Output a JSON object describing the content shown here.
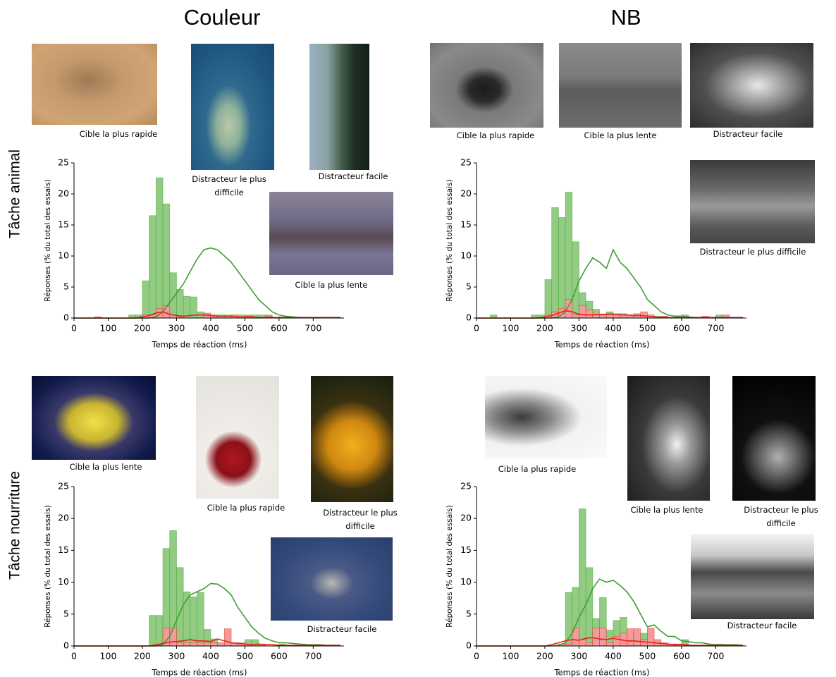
{
  "columns": [
    "Couleur",
    "NB"
  ],
  "rows": [
    "Tâche animal",
    "Tâche nourriture"
  ],
  "chart_data": [
    {
      "type": "histogram",
      "xlabel": "Temps de réaction  (ms)",
      "ylabel": "Réponses (% du total des essais)",
      "xlim": [
        0,
        790
      ],
      "ylim": [
        0,
        25
      ],
      "xticks": [
        0,
        100,
        200,
        300,
        400,
        500,
        600,
        700
      ],
      "yticks": [
        0,
        5,
        10,
        15,
        20,
        25
      ],
      "bins": [
        0,
        20,
        40,
        60,
        80,
        100,
        120,
        140,
        160,
        180,
        200,
        220,
        240,
        260,
        280,
        300,
        320,
        340,
        360,
        380,
        400,
        420,
        440,
        460,
        480,
        500,
        520,
        540,
        560,
        580,
        600,
        620,
        640,
        660,
        680,
        700,
        720,
        740,
        760,
        780
      ],
      "series": [
        {
          "color": "#92cc82",
          "values": [
            0,
            0,
            0,
            0,
            0,
            0,
            0,
            0,
            0.5,
            0.5,
            6,
            16.5,
            22.6,
            18.4,
            7.3,
            4.6,
            3.5,
            3.4,
            1,
            0.5,
            0.5,
            0.5,
            0.5,
            0.5,
            0.5,
            0.5,
            0.5,
            0.5,
            0.5,
            0,
            0.2,
            0,
            0,
            0,
            0,
            0,
            0,
            0,
            0
          ]
        },
        {
          "color": "#f39a9a",
          "values": [
            0,
            0,
            0,
            0.2,
            0,
            0,
            0,
            0,
            0,
            0,
            0.5,
            0.5,
            1.5,
            2,
            0.5,
            0.2,
            0,
            0,
            0,
            0.8,
            0.5,
            0,
            0,
            0.5,
            0,
            0.3,
            0,
            0,
            0.3,
            0,
            0,
            0.2,
            0,
            0,
            0,
            0,
            0,
            0,
            0
          ]
        }
      ],
      "x": [
        0,
        20,
        40,
        60,
        80,
        100,
        120,
        140,
        160,
        180,
        200,
        220,
        240,
        260,
        280,
        300,
        320,
        340,
        360,
        380,
        400,
        420,
        440,
        460,
        480,
        500,
        520,
        540,
        560,
        580,
        600,
        620,
        640,
        660,
        680,
        700,
        720,
        740,
        760,
        780
      ],
      "line_series": [
        {
          "color": "#3f9e33",
          "values": [
            0,
            0,
            0,
            0,
            0,
            0,
            0,
            0,
            0,
            0,
            0,
            0,
            0.2,
            1,
            2.5,
            4,
            5.5,
            7.5,
            9.5,
            11,
            11.3,
            11,
            10,
            9,
            7.5,
            6,
            4.5,
            3,
            2,
            1,
            0.5,
            0.3,
            0.2,
            0.1,
            0.1,
            0.1,
            0.1,
            0.1,
            0.1,
            0.1
          ]
        },
        {
          "color": "#e5221c",
          "values": [
            0,
            0,
            0,
            0,
            0,
            0,
            0,
            0,
            0,
            0,
            0.2,
            0.4,
            0.8,
            1,
            0.6,
            0.4,
            0.3,
            0.4,
            0.5,
            0.5,
            0.4,
            0.3,
            0.3,
            0.3,
            0.2,
            0.2,
            0.2,
            0.1,
            0.1,
            0.1,
            0.1,
            0.1,
            0.1,
            0.1,
            0.1,
            0.1,
            0.1,
            0.1,
            0.1,
            0.1
          ]
        }
      ],
      "annotations": [
        "Cible la plus rapide",
        "Distracteur le plus difficile",
        "Distracteur facile",
        "Cible la plus lente"
      ]
    },
    {
      "type": "histogram",
      "xlabel": "Temps de réaction  (ms)",
      "ylabel": "Réponses (% du total des essais)",
      "xlim": [
        0,
        790
      ],
      "ylim": [
        0,
        25
      ],
      "xticks": [
        0,
        100,
        200,
        300,
        400,
        500,
        600,
        700
      ],
      "yticks": [
        0,
        5,
        10,
        15,
        20,
        25
      ],
      "bins": [
        0,
        20,
        40,
        60,
        80,
        100,
        120,
        140,
        160,
        180,
        200,
        220,
        240,
        260,
        280,
        300,
        320,
        340,
        360,
        380,
        400,
        420,
        440,
        460,
        480,
        500,
        520,
        540,
        560,
        580,
        600,
        620,
        640,
        660,
        680,
        700,
        720,
        740,
        760,
        780
      ],
      "series": [
        {
          "color": "#92cc82",
          "values": [
            0,
            0,
            0.5,
            0,
            0,
            0,
            0,
            0,
            0.5,
            0.5,
            6.2,
            17.8,
            16.2,
            20.3,
            12.3,
            4.1,
            2.7,
            1.4,
            0.5,
            1,
            0.5,
            0.7,
            0.5,
            0.5,
            0.5,
            0.5,
            0.3,
            0.3,
            0,
            0,
            0.5,
            0,
            0,
            0,
            0,
            0.5,
            0,
            0,
            0
          ]
        },
        {
          "color": "#f39a9a",
          "values": [
            0,
            0,
            0,
            0,
            0,
            0,
            0,
            0,
            0,
            0,
            0.5,
            1,
            1.5,
            3,
            0.5,
            2,
            1.3,
            0.5,
            0.5,
            0.7,
            0.7,
            0.5,
            0.5,
            0.7,
            1,
            0.5,
            0,
            0.3,
            0,
            0.3,
            0,
            0,
            0,
            0.3,
            0,
            0,
            0.5,
            0,
            0
          ]
        }
      ],
      "x": [
        0,
        20,
        40,
        60,
        80,
        100,
        120,
        140,
        160,
        180,
        200,
        220,
        240,
        260,
        280,
        300,
        320,
        340,
        360,
        380,
        400,
        420,
        440,
        460,
        480,
        500,
        520,
        540,
        560,
        580,
        600,
        620,
        640,
        660,
        680,
        700,
        720,
        740,
        760,
        780
      ],
      "line_series": [
        {
          "color": "#3f9e33",
          "values": [
            0,
            0,
            0,
            0,
            0,
            0,
            0,
            0,
            0,
            0,
            0,
            0,
            0.2,
            1,
            3,
            6,
            8,
            9.7,
            9,
            8,
            11,
            9,
            8,
            6.5,
            5,
            3,
            2,
            1,
            0.5,
            0.3,
            0.3,
            0.2,
            0.1,
            0.1,
            0.1,
            0.1,
            0.1,
            0.1,
            0.1,
            0.1
          ]
        },
        {
          "color": "#e5221c",
          "values": [
            0,
            0,
            0,
            0,
            0,
            0,
            0,
            0,
            0,
            0,
            0.2,
            0.4,
            0.8,
            1.2,
            1,
            0.6,
            0.5,
            0.5,
            0.6,
            0.6,
            0.6,
            0.5,
            0.5,
            0.4,
            0.4,
            0.3,
            0.2,
            0.1,
            0.1,
            0.1,
            0.1,
            0.1,
            0.1,
            0.1,
            0.1,
            0.1,
            0.1,
            0.1,
            0.1,
            0.1
          ]
        }
      ],
      "annotations": [
        "Cible la plus rapide",
        "Cible la plus lente",
        "Distracteur facile",
        "Distracteur le plus difficile"
      ]
    },
    {
      "type": "histogram",
      "xlabel": "Temps de réaction  (ms)",
      "ylabel": "Réponses (% du total des essais)",
      "xlim": [
        0,
        790
      ],
      "ylim": [
        0,
        25
      ],
      "xticks": [
        0,
        100,
        200,
        300,
        400,
        500,
        600,
        700
      ],
      "yticks": [
        0,
        5,
        10,
        15,
        20,
        25
      ],
      "bins": [
        0,
        20,
        40,
        60,
        80,
        100,
        120,
        140,
        160,
        180,
        200,
        220,
        240,
        260,
        280,
        300,
        320,
        340,
        360,
        380,
        400,
        420,
        440,
        460,
        480,
        500,
        520,
        540,
        560,
        580,
        600,
        620,
        640,
        660,
        680,
        700,
        720,
        740,
        760,
        780
      ],
      "series": [
        {
          "color": "#92cc82",
          "values": [
            0,
            0,
            0,
            0,
            0,
            0,
            0,
            0,
            0,
            0,
            0,
            4.8,
            4.8,
            15.3,
            18.1,
            12.3,
            8.5,
            7.7,
            8.4,
            2.6,
            1.1,
            0.5,
            0.3,
            0.5,
            0.3,
            1,
            1,
            0.3,
            0,
            0,
            0.3,
            0,
            0,
            0.3,
            0,
            0,
            0,
            0,
            0
          ]
        },
        {
          "color": "#f39a9a",
          "values": [
            0,
            0,
            0,
            0,
            0,
            0,
            0,
            0,
            0,
            0,
            0,
            0,
            0,
            2.8,
            2.8,
            0.5,
            0.5,
            0.5,
            0.5,
            0.5,
            0.5,
            0.5,
            2.7,
            0.5,
            0.5,
            0.3,
            0,
            0.3,
            0,
            0,
            0,
            0,
            0,
            0,
            0,
            0,
            0,
            0,
            0
          ]
        }
      ],
      "x": [
        0,
        20,
        40,
        60,
        80,
        100,
        120,
        140,
        160,
        180,
        200,
        220,
        240,
        260,
        280,
        300,
        320,
        340,
        360,
        380,
        400,
        420,
        440,
        460,
        480,
        500,
        520,
        540,
        560,
        580,
        600,
        620,
        640,
        660,
        680,
        700,
        720,
        740,
        760,
        780
      ],
      "line_series": [
        {
          "color": "#3f9e33",
          "values": [
            0,
            0,
            0,
            0,
            0,
            0,
            0,
            0,
            0,
            0,
            0,
            0,
            0,
            0.2,
            1.5,
            4,
            6.5,
            8,
            8.5,
            9,
            9.8,
            9.7,
            9,
            8,
            6,
            4.5,
            3,
            2,
            1.2,
            0.8,
            0.5,
            0.5,
            0.4,
            0.3,
            0.2,
            0.2,
            0.2,
            0.1,
            0.1,
            0.1
          ]
        },
        {
          "color": "#e5221c",
          "values": [
            0,
            0,
            0,
            0,
            0,
            0,
            0,
            0,
            0,
            0,
            0,
            0,
            0.2,
            0.4,
            0.6,
            0.7,
            0.8,
            1,
            0.8,
            0.8,
            0.7,
            1.1,
            0.8,
            0.5,
            0.4,
            0.3,
            0.2,
            0.3,
            0.2,
            0.2,
            0.1,
            0.1,
            0.1,
            0.1,
            0.1,
            0.1,
            0.1,
            0.1,
            0.1,
            0.1
          ]
        }
      ],
      "annotations": [
        "Cible la plus lente",
        "Cible la plus rapide",
        "Distracteur le plus difficile",
        "Distracteur facile"
      ]
    },
    {
      "type": "histogram",
      "xlabel": "Temps de réaction  (ms)",
      "ylabel": "Réponses (% du total des essais)",
      "xlim": [
        0,
        790
      ],
      "ylim": [
        0,
        25
      ],
      "xticks": [
        0,
        100,
        200,
        300,
        400,
        500,
        600,
        700
      ],
      "yticks": [
        0,
        5,
        10,
        15,
        20,
        25
      ],
      "bins": [
        0,
        20,
        40,
        60,
        80,
        100,
        120,
        140,
        160,
        180,
        200,
        220,
        240,
        260,
        280,
        300,
        320,
        340,
        360,
        380,
        400,
        420,
        440,
        460,
        480,
        500,
        520,
        540,
        560,
        580,
        600,
        620,
        640,
        660,
        680,
        700,
        720,
        740,
        760,
        780
      ],
      "series": [
        {
          "color": "#92cc82",
          "values": [
            0,
            0,
            0,
            0,
            0,
            0,
            0,
            0,
            0,
            0,
            0,
            0,
            0.3,
            8.4,
            9.2,
            21.5,
            12.3,
            4.3,
            7.6,
            2.5,
            4,
            4.5,
            0.5,
            2,
            2,
            0.5,
            0.3,
            0.3,
            0.3,
            0.3,
            1,
            0,
            0,
            0,
            0,
            0.3,
            0,
            0,
            0
          ]
        },
        {
          "color": "#f39a9a",
          "values": [
            0,
            0,
            0,
            0,
            0,
            0,
            0,
            0,
            0,
            0,
            0,
            0,
            0.3,
            0.3,
            2.8,
            1,
            0.5,
            2.8,
            2.8,
            0.5,
            1.5,
            2,
            2.7,
            2.7,
            1,
            2.8,
            1,
            0.5,
            0.3,
            0.3,
            0.3,
            0,
            0,
            0,
            0,
            0,
            0,
            0,
            0
          ]
        }
      ],
      "x": [
        0,
        20,
        40,
        60,
        80,
        100,
        120,
        140,
        160,
        180,
        200,
        220,
        240,
        260,
        280,
        300,
        320,
        340,
        360,
        380,
        400,
        420,
        440,
        460,
        480,
        500,
        520,
        540,
        560,
        580,
        600,
        620,
        640,
        660,
        680,
        700,
        720,
        740,
        760,
        780
      ],
      "line_series": [
        {
          "color": "#3f9e33",
          "values": [
            0,
            0,
            0,
            0,
            0,
            0,
            0,
            0,
            0,
            0,
            0,
            0,
            0.1,
            0.5,
            2,
            4.5,
            6.5,
            9,
            10.5,
            10,
            10.3,
            9.5,
            8.5,
            7,
            5,
            3,
            3.3,
            2.3,
            1.5,
            1.5,
            0.8,
            0.7,
            0.5,
            0.5,
            0.3,
            0.2,
            0.2,
            0.2,
            0.2,
            0.1
          ]
        },
        {
          "color": "#e5221c",
          "values": [
            0,
            0,
            0,
            0,
            0,
            0,
            0,
            0,
            0,
            0,
            0,
            0.2,
            0.5,
            0.8,
            1,
            0.9,
            1.2,
            1.3,
            1.1,
            1,
            1.2,
            1,
            0.8,
            0.8,
            0.7,
            0.6,
            0.5,
            0.4,
            0.3,
            0.2,
            0.2,
            0.1,
            0.1,
            0.1,
            0.1,
            0.1,
            0.1,
            0.1,
            0.1,
            0.1
          ]
        }
      ],
      "annotations": [
        "Cible la plus rapide",
        "Cible la plus lente",
        "Distracteur le plus difficile",
        "Distracteur facile"
      ]
    }
  ]
}
